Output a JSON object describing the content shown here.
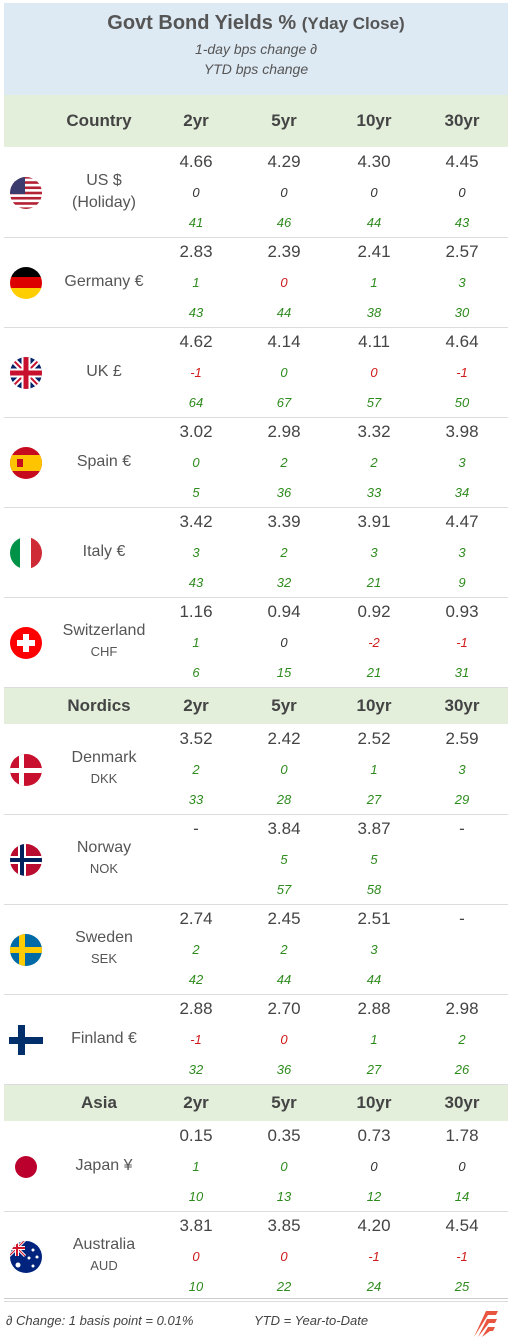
{
  "title": {
    "main": "Govt Bond Yields %",
    "sub": "(Yday Close)",
    "line2": "1-day bps change ∂",
    "line3": "YTD bps change"
  },
  "sections": [
    {
      "header": {
        "label": "Country",
        "cols": [
          "2yr",
          "5yr",
          "10yr",
          "30yr"
        ]
      },
      "rows": [
        {
          "name1": "US $",
          "name2": "(Holiday)",
          "flag": "us-flag-icon",
          "yields": [
            "4.66",
            "4.29",
            "4.30",
            "4.45"
          ],
          "daily": [
            "0",
            "0",
            "0",
            "0"
          ],
          "ytd": [
            "41",
            "46",
            "44",
            "43"
          ]
        },
        {
          "name1": "Germany €",
          "name2": "",
          "flag": "germany-flag-icon",
          "yields": [
            "2.83",
            "2.39",
            "2.41",
            "2.57"
          ],
          "daily": [
            "1",
            "0",
            "1",
            "3"
          ],
          "ytd": [
            "43",
            "44",
            "38",
            "30"
          ]
        },
        {
          "name1": "UK £",
          "name2": "",
          "flag": "uk-flag-icon",
          "yields": [
            "4.62",
            "4.14",
            "4.11",
            "4.64"
          ],
          "daily": [
            "-1",
            "0",
            "0",
            "-1"
          ],
          "ytd": [
            "64",
            "67",
            "57",
            "50"
          ]
        },
        {
          "name1": "Spain €",
          "name2": "",
          "flag": "spain-flag-icon",
          "yields": [
            "3.02",
            "2.98",
            "3.32",
            "3.98"
          ],
          "daily": [
            "0",
            "2",
            "2",
            "3"
          ],
          "ytd": [
            "5",
            "36",
            "33",
            "34"
          ]
        },
        {
          "name1": "Italy €",
          "name2": "",
          "flag": "italy-flag-icon",
          "yields": [
            "3.42",
            "3.39",
            "3.91",
            "4.47"
          ],
          "daily": [
            "3",
            "2",
            "3",
            "3"
          ],
          "ytd": [
            "43",
            "32",
            "21",
            "9"
          ]
        },
        {
          "name1": "Switzerland",
          "name2": "CHF",
          "flag": "switzerland-flag-icon",
          "yields": [
            "1.16",
            "0.94",
            "0.92",
            "0.93"
          ],
          "daily": [
            "1",
            "0",
            "-2",
            "-1"
          ],
          "ytd": [
            "6",
            "15",
            "21",
            "31"
          ]
        }
      ]
    },
    {
      "header": {
        "label": "Nordics",
        "cols": [
          "2yr",
          "5yr",
          "10yr",
          "30yr"
        ]
      },
      "rows": [
        {
          "name1": "Denmark",
          "name2": "DKK",
          "flag": "denmark-flag-icon",
          "yields": [
            "3.52",
            "2.42",
            "2.52",
            "2.59"
          ],
          "daily": [
            "2",
            "0",
            "1",
            "3"
          ],
          "ytd": [
            "33",
            "28",
            "27",
            "29"
          ]
        },
        {
          "name1": "Norway",
          "name2": "NOK",
          "flag": "norway-flag-icon",
          "yields": [
            "-",
            "3.84",
            "3.87",
            "-"
          ],
          "daily": [
            "",
            "5",
            "5",
            ""
          ],
          "ytd": [
            "",
            "57",
            "58",
            ""
          ]
        },
        {
          "name1": "Sweden",
          "name2": "SEK",
          "flag": "sweden-flag-icon",
          "yields": [
            "2.74",
            "2.45",
            "2.51",
            "-"
          ],
          "daily": [
            "2",
            "2",
            "3",
            ""
          ],
          "ytd": [
            "42",
            "44",
            "44",
            ""
          ]
        },
        {
          "name1": "Finland €",
          "name2": "",
          "flag": "finland-flag-icon",
          "yields": [
            "2.88",
            "2.70",
            "2.88",
            "2.98"
          ],
          "daily": [
            "-1",
            "0",
            "1",
            "2"
          ],
          "ytd": [
            "32",
            "36",
            "27",
            "26"
          ]
        }
      ]
    },
    {
      "header": {
        "label": "Asia",
        "cols": [
          "2yr",
          "5yr",
          "10yr",
          "30yr"
        ]
      },
      "rows": [
        {
          "name1": "Japan ¥",
          "name2": "",
          "flag": "japan-flag-icon",
          "yields": [
            "0.15",
            "0.35",
            "0.73",
            "1.78"
          ],
          "daily": [
            "1",
            "0",
            "0",
            "0"
          ],
          "ytd": [
            "10",
            "13",
            "12",
            "14"
          ]
        },
        {
          "name1": "Australia",
          "name2": "AUD",
          "flag": "australia-flag-icon",
          "yields": [
            "3.81",
            "3.85",
            "4.20",
            "4.54"
          ],
          "daily": [
            "0",
            "0",
            "-1",
            "-1"
          ],
          "ytd": [
            "10",
            "22",
            "24",
            "25"
          ]
        }
      ]
    }
  ],
  "daily_colors": [
    [
      "zero",
      "zero",
      "zero",
      "zero"
    ],
    [
      "pos",
      "neg",
      "pos",
      "pos"
    ],
    [
      "neg",
      "pos",
      "neg",
      "neg"
    ],
    [
      "pos",
      "pos",
      "pos",
      "pos"
    ],
    [
      "pos",
      "pos",
      "pos",
      "pos"
    ],
    [
      "pos",
      "zero",
      "neg",
      "neg"
    ],
    [
      "pos",
      "pos",
      "pos",
      "pos"
    ],
    [
      "",
      "pos",
      "pos",
      ""
    ],
    [
      "pos",
      "pos",
      "pos",
      ""
    ],
    [
      "neg",
      "neg",
      "pos",
      "pos"
    ],
    [
      "pos",
      "pos",
      "zero",
      "zero"
    ],
    [
      "neg",
      "neg",
      "neg",
      "neg"
    ]
  ],
  "footer": {
    "note1": "∂  Change: 1 basis point = 0.01%",
    "note2": "YTD = Year-to-Date",
    "logo": "brand-logo-icon"
  },
  "colors": {
    "title_bg": "#dde9f3",
    "header_bg": "#e3efdb",
    "positive": "#2e8b1e",
    "negative": "#d11a1a"
  }
}
